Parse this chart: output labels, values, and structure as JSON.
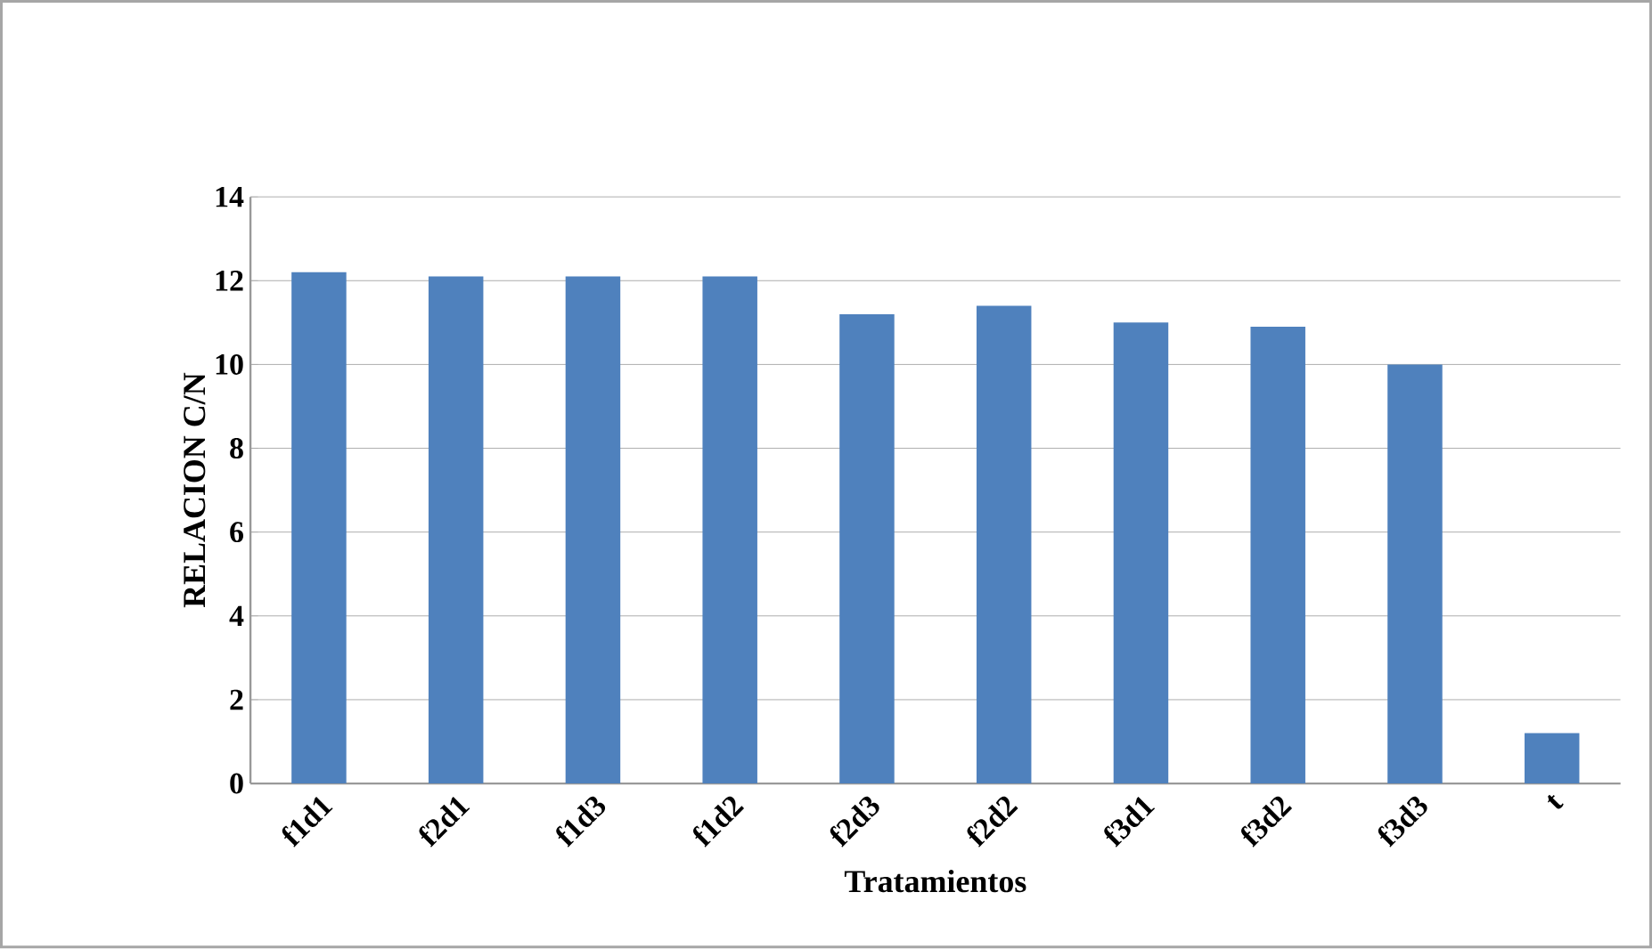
{
  "chart_data": {
    "type": "bar",
    "xlabel": "Tratamientos",
    "ylabel": "RELACION C/N",
    "categories": [
      "f1d1",
      "f2d1",
      "f1d3",
      "f1d2",
      "f2d3",
      "f2d2",
      "f3d1",
      "f3d2",
      "f3d3",
      "t"
    ],
    "values": [
      12.2,
      12.1,
      12.1,
      12.1,
      11.2,
      11.4,
      11.0,
      10.9,
      10.0,
      1.2
    ],
    "color": "#4f81bd",
    "ylim": [
      0,
      14
    ],
    "yticks": [
      0,
      2,
      4,
      6,
      8,
      10,
      12,
      14
    ],
    "grid": "y"
  }
}
